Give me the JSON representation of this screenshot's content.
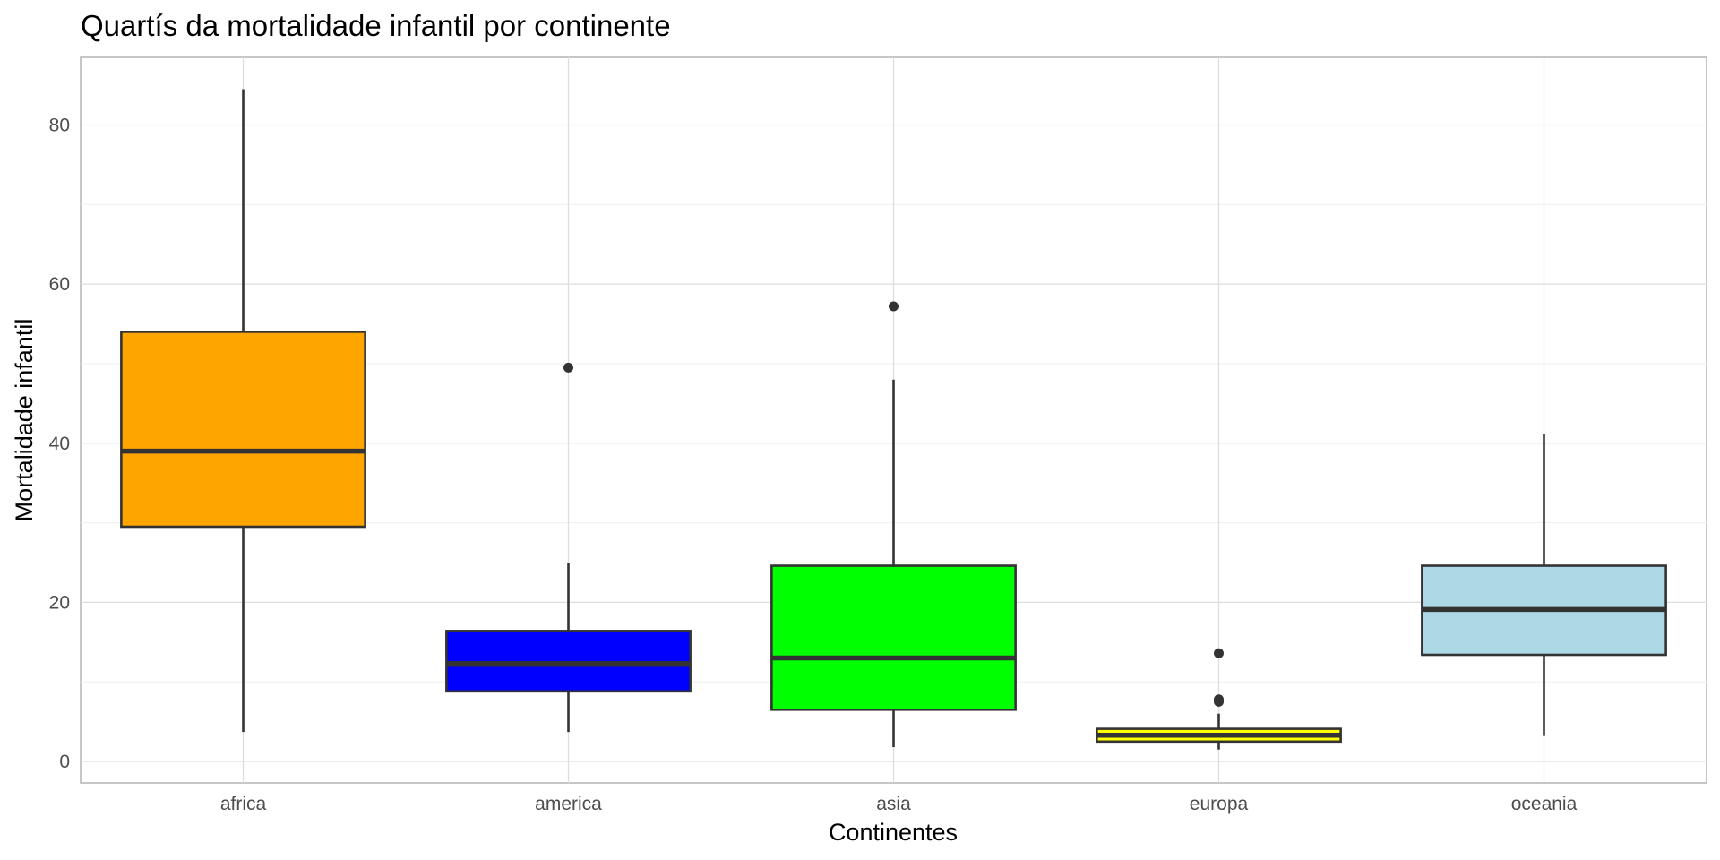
{
  "chart_data": {
    "type": "boxplot",
    "title": "Quartís da mortalidade infantil por continente",
    "xlabel": "Continentes",
    "ylabel": "Mortalidade infantil",
    "ylim": [
      -2.7,
      88.5
    ],
    "yticks": [
      0,
      20,
      40,
      60,
      80
    ],
    "grid": true,
    "legend": "none",
    "categories": [
      "africa",
      "america",
      "asia",
      "europa",
      "oceania"
    ],
    "boxes": [
      {
        "category": "africa",
        "color": "#FFA500",
        "whisker_low": 3.7,
        "q1": 29.5,
        "median": 39.0,
        "q3": 54.0,
        "whisker_high": 84.5,
        "outliers": []
      },
      {
        "category": "america",
        "color": "#0000FF",
        "whisker_low": 3.7,
        "q1": 8.8,
        "median": 12.3,
        "q3": 16.4,
        "whisker_high": 25.0,
        "outliers": [
          49.5
        ]
      },
      {
        "category": "asia",
        "color": "#00FF00",
        "whisker_low": 1.8,
        "q1": 6.5,
        "median": 13.0,
        "q3": 24.6,
        "whisker_high": 48.0,
        "outliers": [
          57.2
        ]
      },
      {
        "category": "europa",
        "color": "#FFFF00",
        "whisker_low": 1.5,
        "q1": 2.5,
        "median": 3.3,
        "q3": 4.1,
        "whisker_high": 6.0,
        "outliers": [
          7.5,
          7.8,
          13.6
        ]
      },
      {
        "category": "oceania",
        "color": "#ADD8E6",
        "whisker_low": 3.2,
        "q1": 13.4,
        "median": 19.1,
        "q3": 24.6,
        "whisker_high": 41.2,
        "outliers": []
      }
    ]
  }
}
